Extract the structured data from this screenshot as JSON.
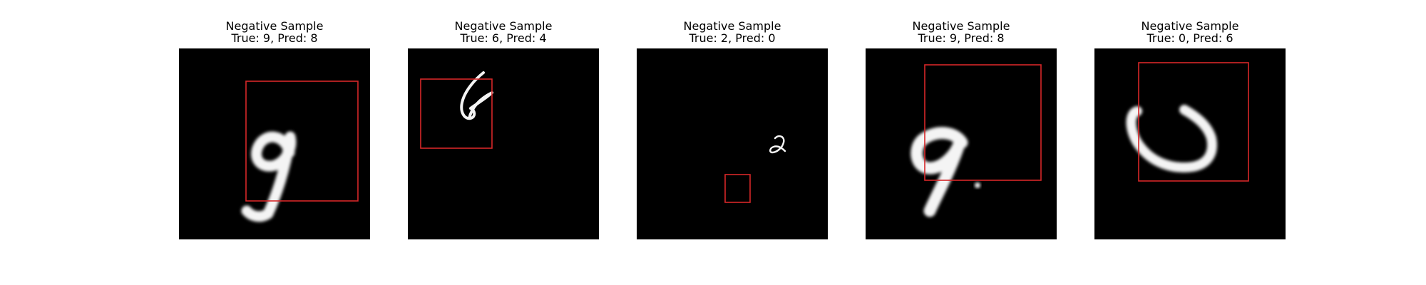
{
  "figure": {
    "panels": [
      {
        "heading": "Negative Sample",
        "label": "True: 9, Pred: 8",
        "true_digit": 9,
        "pred_digit": 8,
        "digit_icon": "digit-9-icon"
      },
      {
        "heading": "Negative Sample",
        "label": "True: 6, Pred: 4",
        "true_digit": 6,
        "pred_digit": 4,
        "digit_icon": "digit-6-icon"
      },
      {
        "heading": "Negative Sample",
        "label": "True: 2, Pred: 0",
        "true_digit": 2,
        "pred_digit": 0,
        "digit_icon": "digit-2-icon"
      },
      {
        "heading": "Negative Sample",
        "label": "True: 9, Pred: 8",
        "true_digit": 9,
        "pred_digit": 8,
        "digit_icon": "digit-9-icon"
      },
      {
        "heading": "Negative Sample",
        "label": "True: 0, Pred: 6",
        "true_digit": 0,
        "pred_digit": 6,
        "digit_icon": "digit-0-icon"
      }
    ],
    "colors": {
      "image_background": "#000000",
      "digit_stroke": "#f4f4f4",
      "bounding_box": "#d62728"
    }
  }
}
